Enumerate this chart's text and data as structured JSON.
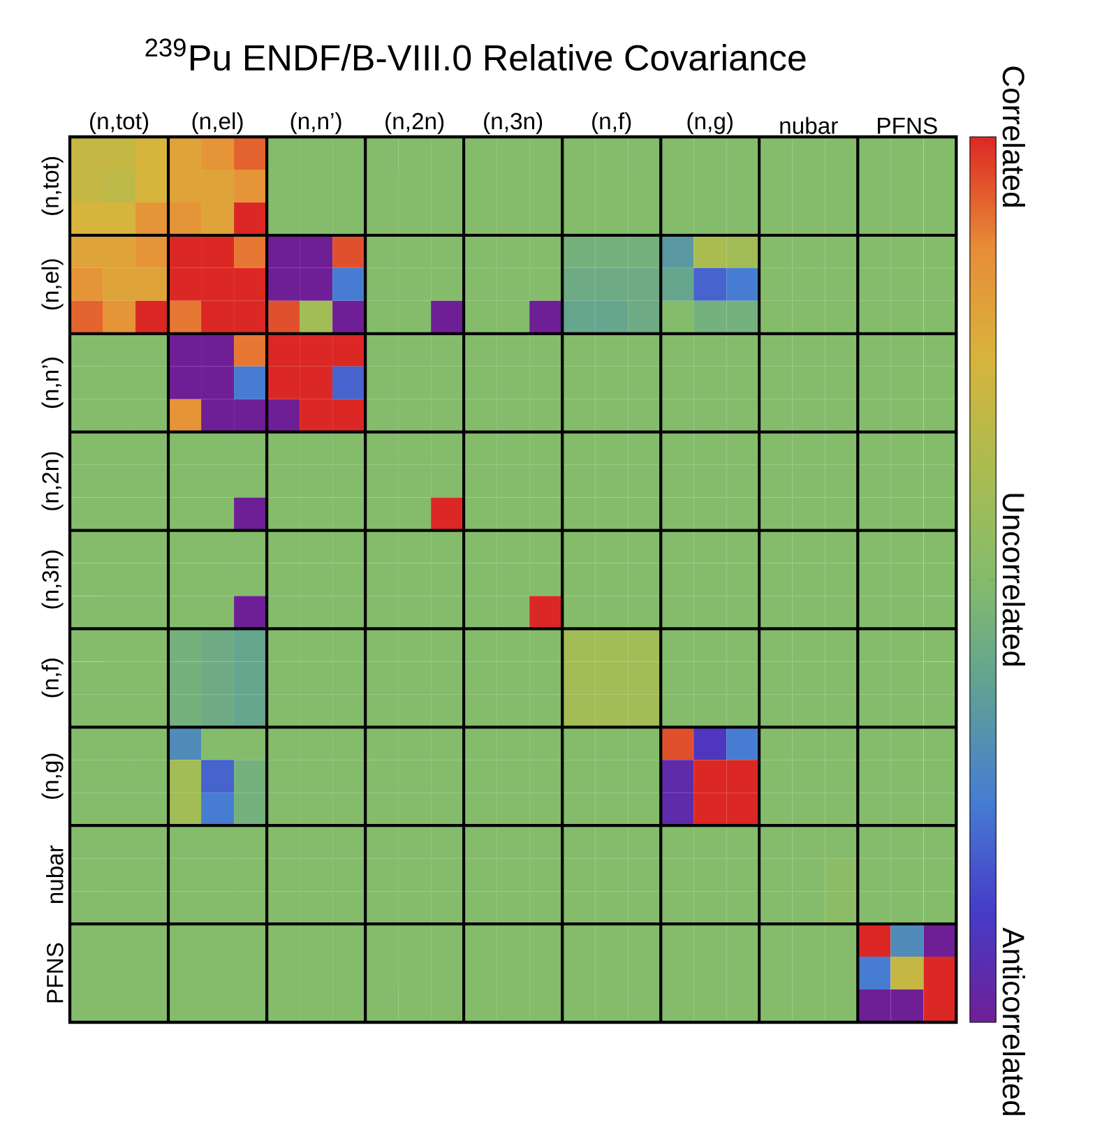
{
  "chart_data": {
    "type": "heatmap",
    "title": "$^{239}$Pu ENDF/B-VIII.0 Relative Covariance",
    "categories": [
      null,
      "(n,tot)",
      null,
      null,
      "(n,el)",
      null,
      null,
      "(n,n’)",
      null,
      null,
      "(n,2n)",
      null,
      null,
      "(n,3n)",
      null,
      null,
      "(n,f)",
      null,
      null,
      "(n,g)",
      null,
      null,
      "nubar",
      null,
      null,
      "PFNS",
      null
    ],
    "y_categories": [
      null,
      "(n,tot)",
      null,
      null,
      "(n,el)",
      null,
      null,
      "(n,n’)",
      null,
      null,
      "(n,2n)",
      null,
      null,
      "(n,3n)",
      null,
      null,
      "(n,f)",
      null,
      null,
      "(n,g)",
      null,
      null,
      "nubar",
      null,
      null,
      "PFNS",
      null
    ],
    "cells": [
      [
        0.4,
        0.4,
        0.5,
        0.6,
        0.7,
        0.85,
        0,
        0,
        0,
        0,
        0,
        0,
        0,
        0,
        0,
        0,
        0,
        0,
        0,
        0,
        0,
        0,
        0,
        0,
        0,
        0,
        0
      ],
      [
        0.4,
        0.35,
        0.5,
        0.6,
        0.6,
        0.7,
        0,
        0,
        0,
        0,
        0,
        0,
        0,
        0,
        0,
        0,
        0,
        0,
        0,
        0,
        0,
        0,
        0,
        0,
        0,
        0,
        0
      ],
      [
        0.5,
        0.5,
        0.7,
        0.7,
        0.6,
        1,
        0,
        0,
        0,
        0,
        0,
        0,
        0,
        0,
        0,
        0,
        0,
        0,
        0,
        0,
        0,
        0,
        0,
        0,
        0,
        0,
        0
      ],
      [
        0.6,
        0.6,
        0.7,
        1,
        1,
        0.8,
        -1,
        -1,
        0.9,
        0,
        0,
        0,
        0,
        0,
        0,
        -0.1,
        -0.1,
        -0.1,
        -0.3,
        0.25,
        0.2,
        0,
        0,
        0,
        0,
        0,
        0
      ],
      [
        0.7,
        0.6,
        0.6,
        1,
        1,
        1,
        -1,
        -1,
        -0.5,
        0,
        0,
        0,
        0,
        0,
        0,
        -0.15,
        -0.15,
        -0.15,
        -0.2,
        -0.6,
        -0.5,
        0,
        0,
        0,
        0,
        0,
        0
      ],
      [
        0.85,
        0.7,
        1,
        0.8,
        1,
        1,
        0.9,
        0.2,
        -1,
        0,
        0,
        -1,
        0,
        0,
        -1,
        -0.2,
        -0.2,
        -0.15,
        0,
        -0.1,
        -0.1,
        0,
        0,
        0,
        0,
        0,
        0
      ],
      [
        0,
        0,
        0,
        -1,
        -1,
        0.8,
        1,
        1,
        1,
        0,
        0,
        0,
        0,
        0,
        0,
        0,
        0,
        0,
        0,
        0,
        0,
        0,
        0,
        0,
        0,
        0,
        0
      ],
      [
        0,
        0,
        0,
        -1,
        -1,
        -0.5,
        1,
        1,
        -0.6,
        0,
        0,
        0,
        0,
        0,
        0,
        0,
        0,
        0,
        0,
        0,
        0,
        0,
        0,
        0,
        0,
        0,
        0
      ],
      [
        0,
        0,
        0,
        0.7,
        -1,
        -1,
        -1,
        1,
        1,
        0,
        0,
        0,
        0,
        0,
        0,
        0,
        0,
        0,
        0,
        0,
        0,
        0,
        0,
        0,
        0,
        0,
        0
      ],
      [
        0,
        0,
        0,
        0,
        0,
        0,
        0,
        0,
        0,
        0,
        0,
        0,
        0,
        0,
        0,
        0,
        0,
        0,
        0,
        0,
        0,
        0,
        0,
        0,
        0,
        0,
        0
      ],
      [
        0,
        0,
        0,
        0,
        0,
        0,
        0,
        0,
        0,
        0,
        0,
        0,
        0,
        0,
        0,
        0,
        0,
        0,
        0,
        0,
        0,
        0,
        0,
        0,
        0,
        0,
        0
      ],
      [
        0,
        0,
        0,
        0,
        0,
        -1,
        0,
        0,
        0,
        0,
        0,
        1,
        0,
        0,
        0,
        0,
        0,
        0,
        0,
        0,
        0,
        0,
        0,
        0,
        0,
        0,
        0
      ],
      [
        0,
        0,
        0,
        0,
        0,
        0,
        0,
        0,
        0,
        0,
        0,
        0,
        0,
        0,
        0,
        0,
        0,
        0,
        0,
        0,
        0,
        0,
        0,
        0,
        0,
        0,
        0
      ],
      [
        0,
        0,
        0,
        0,
        0,
        0,
        0,
        0,
        0,
        0,
        0,
        0,
        0,
        0,
        0,
        0,
        0,
        0,
        0,
        0,
        0,
        0,
        0,
        0,
        0,
        0,
        0
      ],
      [
        0,
        0,
        0,
        0,
        0,
        -1,
        0,
        0,
        0,
        0,
        0,
        0,
        0,
        0,
        1,
        0,
        0,
        0,
        0,
        0,
        0,
        0,
        0,
        0,
        0,
        0,
        0
      ],
      [
        0,
        0,
        0,
        -0.1,
        -0.15,
        -0.2,
        0,
        0,
        0,
        0,
        0,
        0,
        0,
        0,
        0,
        0.2,
        0.2,
        0.2,
        0,
        0,
        0,
        0,
        0,
        0,
        0,
        0,
        0
      ],
      [
        0,
        0,
        0,
        -0.1,
        -0.15,
        -0.2,
        0,
        0,
        0,
        0,
        0,
        0,
        0,
        0,
        0,
        0.2,
        0.2,
        0.2,
        0,
        0,
        0,
        0,
        0,
        0,
        0,
        0,
        0
      ],
      [
        0,
        0,
        0,
        -0.1,
        -0.15,
        -0.2,
        0,
        0,
        0,
        0,
        0,
        0,
        0,
        0,
        0,
        0.2,
        0.2,
        0.2,
        0,
        0,
        0,
        0,
        0,
        0,
        0,
        0,
        0
      ],
      [
        0,
        0,
        0,
        -0.4,
        0,
        0,
        0,
        0,
        0,
        0,
        0,
        0,
        0,
        0,
        0,
        0,
        0,
        0,
        0.9,
        -0.8,
        -0.5,
        0,
        0,
        0,
        0,
        0,
        0
      ],
      [
        0,
        0,
        0,
        0.2,
        -0.6,
        -0.1,
        0,
        0,
        0,
        0,
        0,
        0,
        0,
        0,
        0,
        0,
        0,
        0,
        -0.9,
        1,
        1,
        0,
        0,
        0,
        0,
        0,
        0
      ],
      [
        0,
        0,
        0,
        0.2,
        -0.5,
        -0.1,
        0,
        0,
        0,
        0,
        0,
        0,
        0,
        0,
        0,
        0,
        0,
        0,
        -0.9,
        1,
        1,
        0,
        0,
        0,
        0,
        0,
        0
      ],
      [
        0,
        0,
        0,
        0,
        0,
        0,
        0,
        0,
        0,
        0,
        0,
        0,
        0,
        0,
        0,
        0,
        0,
        0,
        0,
        0,
        0,
        0,
        0,
        0,
        0,
        0,
        0
      ],
      [
        0,
        0,
        0,
        0,
        0,
        0,
        0,
        0,
        0,
        0,
        0,
        0,
        0,
        0,
        0,
        0,
        0,
        0,
        0,
        0,
        0,
        0,
        0,
        0.05,
        0,
        0,
        0
      ],
      [
        0,
        0,
        0,
        0,
        0,
        0,
        0,
        0,
        0,
        0,
        0,
        0,
        0,
        0,
        0,
        0,
        0,
        0,
        0,
        0,
        0,
        0,
        0,
        0.05,
        0,
        0,
        0
      ],
      [
        0,
        0,
        0,
        0,
        0,
        0,
        0,
        0,
        0,
        0,
        0,
        0,
        0,
        0,
        0,
        0,
        0,
        0,
        0,
        0,
        0,
        0,
        0,
        0,
        1,
        -0.4,
        -1
      ],
      [
        0,
        0,
        0,
        0,
        0,
        0,
        0,
        0,
        0,
        0,
        0,
        0,
        0,
        0,
        0,
        0,
        0,
        0,
        0,
        0,
        0,
        0,
        0,
        0,
        -0.5,
        0.4,
        1
      ],
      [
        0,
        0,
        0,
        0,
        0,
        0,
        0,
        0,
        0,
        0,
        0,
        0,
        0,
        0,
        0,
        0,
        0,
        0,
        0,
        0,
        0,
        0,
        0,
        0,
        -1,
        -1,
        1
      ]
    ],
    "clim": [
      -1,
      1
    ],
    "cticks": [
      {
        "value": 1,
        "label": "Correlated"
      },
      {
        "value": 0,
        "label": "Uncorrelated"
      },
      {
        "value": -1,
        "label": "Anticorrelated"
      }
    ]
  }
}
